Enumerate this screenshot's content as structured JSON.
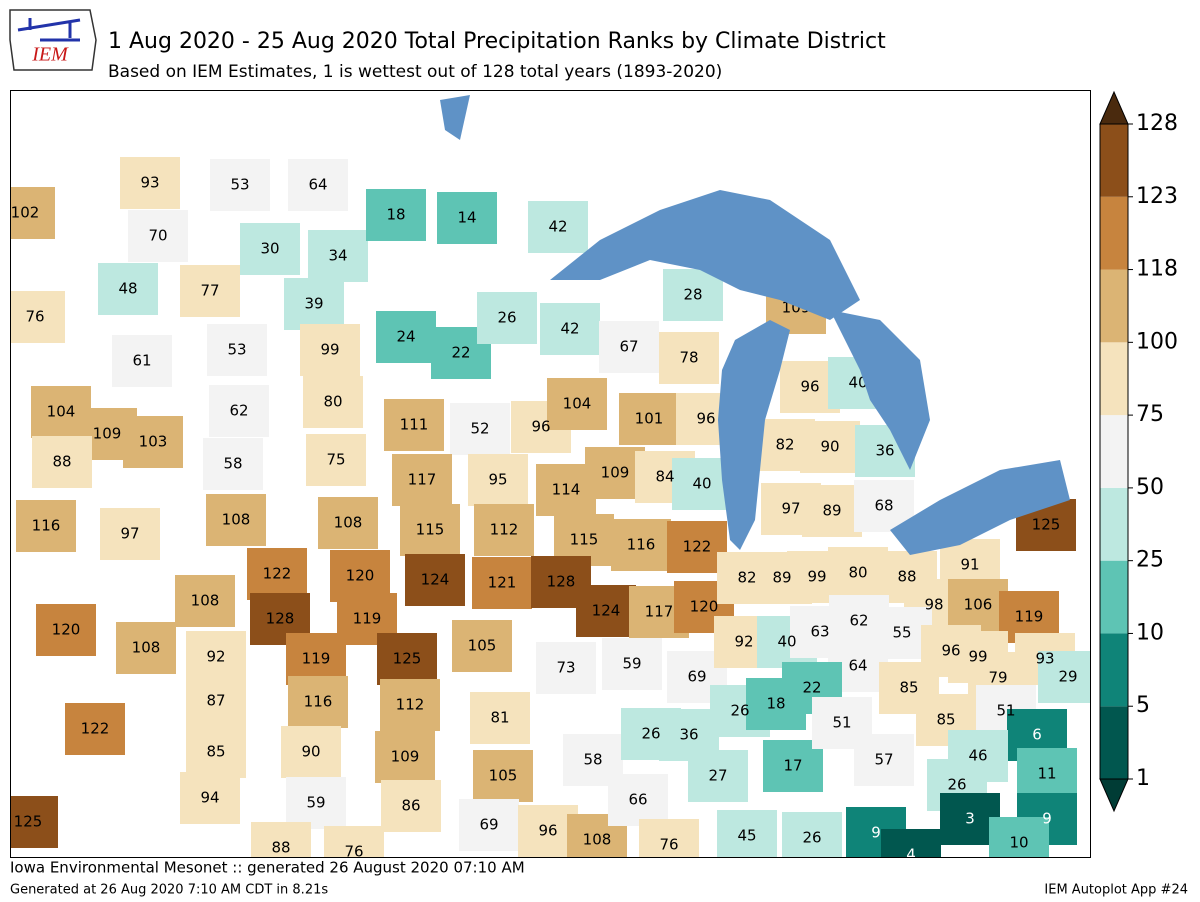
{
  "logo": "IEM",
  "title": "1 Aug 2020 - 25 Aug 2020 Total Precipitation Ranks by Climate District",
  "subtitle": "Based on IEM Estimates, 1 is wettest out of 128 total years (1893-2020)",
  "footer_left": "Iowa Environmental Mesonet :: generated 26 August 2020 07:10 AM",
  "footer_generated": "Generated at 26 Aug 2020 7:10 AM CDT in 8.21s",
  "footer_right": "IEM Autoplot App #24",
  "colorbar": {
    "ticks": [
      1,
      5,
      10,
      25,
      50,
      75,
      100,
      118,
      123,
      128
    ],
    "colors": [
      "#01574f",
      "#0f8478",
      "#5ec4b4",
      "#bde8e0",
      "#f3f3f3",
      "#f5e3bd",
      "#dbb474",
      "#c7843e",
      "#8c4f1a"
    ],
    "over_color": "#4a2a0e",
    "under_color": "#003c35"
  },
  "district_ranks": [
    102,
    93,
    53,
    64,
    70,
    30,
    34,
    48,
    77,
    39,
    76,
    18,
    14,
    42,
    24,
    22,
    26,
    28,
    42,
    67,
    78,
    109,
    61,
    53,
    99,
    62,
    80,
    104,
    109,
    103,
    88,
    58,
    75,
    111,
    52,
    96,
    104,
    101,
    96,
    96,
    40,
    82,
    90,
    36,
    117,
    95,
    114,
    109,
    84,
    40,
    97,
    89,
    68,
    116,
    97,
    108,
    108,
    115,
    112,
    115,
    116,
    122,
    125,
    91,
    122,
    120,
    124,
    121,
    128,
    124,
    117,
    120,
    82,
    89,
    99,
    80,
    88,
    98,
    106,
    119,
    120,
    108,
    108,
    128,
    119,
    92,
    119,
    125,
    105,
    73,
    59,
    69,
    92,
    40,
    63,
    62,
    55,
    64,
    96,
    99,
    93,
    79,
    87,
    116,
    112,
    81,
    26,
    18,
    22,
    85,
    29,
    122,
    85,
    90,
    109,
    105,
    58,
    26,
    36,
    27,
    17,
    51,
    57,
    85,
    51,
    6,
    46,
    11,
    26,
    94,
    59,
    86,
    125,
    69,
    96,
    108,
    66,
    76,
    45,
    26,
    9,
    3,
    9,
    10,
    4,
    88,
    76
  ]
}
